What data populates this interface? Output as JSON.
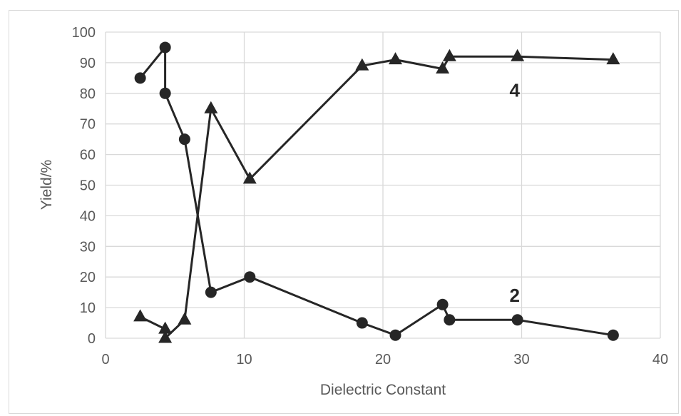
{
  "chart_data": {
    "type": "line",
    "xlabel": "Dielectric Constant",
    "ylabel": "Yield/%",
    "xlim": [
      0,
      40
    ],
    "ylim": [
      0,
      100
    ],
    "x_ticks": [
      "0",
      "10",
      "20",
      "30",
      "40"
    ],
    "y_ticks": [
      "0",
      "10",
      "20",
      "30",
      "40",
      "50",
      "60",
      "70",
      "80",
      "90",
      "100"
    ],
    "grid": true,
    "legend": "none",
    "series": [
      {
        "label": "2",
        "marker": "circle",
        "color": "#262626",
        "points": [
          {
            "x": 2.5,
            "y": 85
          },
          {
            "x": 4.3,
            "y": 95
          },
          {
            "x": 4.3,
            "y": 80
          },
          {
            "x": 5.7,
            "y": 65
          },
          {
            "x": 7.6,
            "y": 15
          },
          {
            "x": 10.4,
            "y": 20
          },
          {
            "x": 18.5,
            "y": 5
          },
          {
            "x": 20.9,
            "y": 1
          },
          {
            "x": 24.3,
            "y": 11
          },
          {
            "x": 24.8,
            "y": 6
          },
          {
            "x": 29.7,
            "y": 6
          },
          {
            "x": 36.6,
            "y": 1
          }
        ]
      },
      {
        "label": "4",
        "marker": "triangle",
        "color": "#262626",
        "points": [
          {
            "x": 2.5,
            "y": 7
          },
          {
            "x": 4.3,
            "y": 3
          },
          {
            "x": 4.3,
            "y": 0
          },
          {
            "x": 5.7,
            "y": 6
          },
          {
            "x": 7.6,
            "y": 75
          },
          {
            "x": 10.4,
            "y": 52
          },
          {
            "x": 18.5,
            "y": 89
          },
          {
            "x": 20.9,
            "y": 91
          },
          {
            "x": 24.3,
            "y": 88
          },
          {
            "x": 24.8,
            "y": 92
          },
          {
            "x": 29.7,
            "y": 92
          },
          {
            "x": 36.6,
            "y": 91
          }
        ]
      }
    ],
    "annotations": [
      {
        "text": "4",
        "x": 29.5,
        "y": 81
      },
      {
        "text": "2",
        "x": 29.5,
        "y": 14
      }
    ]
  }
}
